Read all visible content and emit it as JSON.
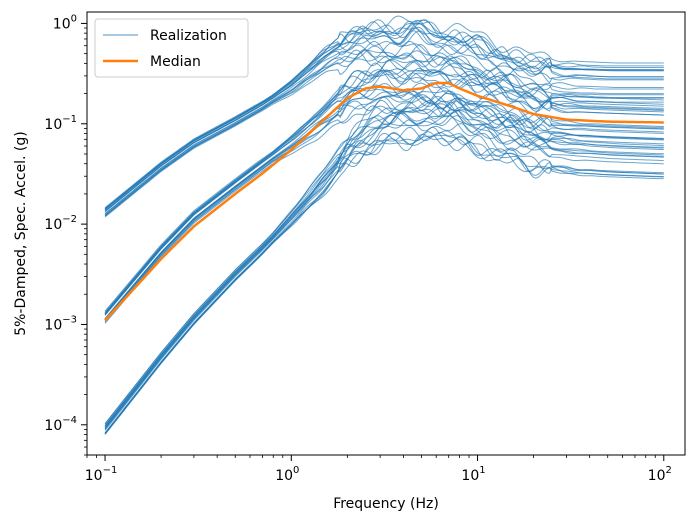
{
  "chart_data": {
    "type": "line",
    "xlabel": "Frequency (Hz)",
    "ylabel": "5%-Damped, Spec. Accel. (g)",
    "xscale": "log",
    "yscale": "log",
    "xlim": [
      0.08,
      130
    ],
    "ylim": [
      5e-05,
      1.3
    ],
    "xticks": [
      {
        "value": 0.1,
        "base": "10",
        "exp": "−1"
      },
      {
        "value": 1,
        "base": "10",
        "exp": "0"
      },
      {
        "value": 10,
        "base": "10",
        "exp": "1"
      },
      {
        "value": 100,
        "base": "10",
        "exp": "2"
      }
    ],
    "yticks": [
      {
        "value": 0.0001,
        "base": "10",
        "exp": "−4"
      },
      {
        "value": 0.001,
        "base": "10",
        "exp": "−3"
      },
      {
        "value": 0.01,
        "base": "10",
        "exp": "−2"
      },
      {
        "value": 0.1,
        "base": "10",
        "exp": "−1"
      },
      {
        "value": 1,
        "base": "10",
        "exp": "0"
      }
    ],
    "grid": false,
    "legend_position": "top-left",
    "legend": [
      {
        "label": "Realization",
        "color": "#1f77b4",
        "style": "thin"
      },
      {
        "label": "Median",
        "color": "#ff7f0e",
        "style": "thick"
      }
    ],
    "colors": {
      "realization": "#1f77b4",
      "median": "#ff7f0e"
    },
    "groups": [
      {
        "count": 18,
        "points": [
          [
            0.1,
            0.013
          ],
          [
            0.2,
            0.037
          ],
          [
            0.3,
            0.063
          ],
          [
            0.5,
            0.105
          ],
          [
            0.7,
            0.15
          ],
          [
            1.0,
            0.23
          ],
          [
            1.5,
            0.42
          ],
          [
            2.0,
            0.58
          ],
          [
            3.0,
            0.62
          ],
          [
            5.0,
            0.64
          ],
          [
            7.0,
            0.55
          ],
          [
            10.0,
            0.45
          ],
          [
            15.0,
            0.33
          ],
          [
            20.0,
            0.28
          ],
          [
            30.0,
            0.26
          ],
          [
            50.0,
            0.25
          ],
          [
            100.0,
            0.25
          ]
        ],
        "spread_low": 0.15,
        "spread_high": 0.22
      },
      {
        "count": 18,
        "points": [
          [
            0.1,
            0.0012
          ],
          [
            0.2,
            0.0055
          ],
          [
            0.3,
            0.012
          ],
          [
            0.5,
            0.025
          ],
          [
            0.7,
            0.04
          ],
          [
            1.0,
            0.065
          ],
          [
            1.5,
            0.12
          ],
          [
            2.0,
            0.2
          ],
          [
            3.0,
            0.26
          ],
          [
            4.0,
            0.25
          ],
          [
            6.0,
            0.25
          ],
          [
            8.0,
            0.22
          ],
          [
            10.0,
            0.2
          ],
          [
            15.0,
            0.16
          ],
          [
            20.0,
            0.13
          ],
          [
            30.0,
            0.12
          ],
          [
            50.0,
            0.115
          ],
          [
            100.0,
            0.11
          ]
        ],
        "spread_low": 0.2,
        "spread_high": 0.25
      },
      {
        "count": 18,
        "points": [
          [
            0.1,
            8.8e-05
          ],
          [
            0.2,
            0.00045
          ],
          [
            0.3,
            0.0011
          ],
          [
            0.5,
            0.003
          ],
          [
            0.7,
            0.0055
          ],
          [
            1.0,
            0.011
          ],
          [
            1.5,
            0.025
          ],
          [
            2.0,
            0.05
          ],
          [
            2.5,
            0.07
          ],
          [
            3.0,
            0.085
          ],
          [
            5.0,
            0.095
          ],
          [
            7.0,
            0.1
          ],
          [
            10.0,
            0.075
          ],
          [
            15.0,
            0.06
          ],
          [
            20.0,
            0.05
          ],
          [
            30.0,
            0.045
          ],
          [
            50.0,
            0.042
          ],
          [
            100.0,
            0.04
          ]
        ],
        "spread_low": 0.2,
        "spread_high": 0.25
      }
    ],
    "median": [
      [
        0.1,
        0.0011
      ],
      [
        0.15,
        0.0025
      ],
      [
        0.2,
        0.0045
      ],
      [
        0.3,
        0.0095
      ],
      [
        0.5,
        0.02
      ],
      [
        0.7,
        0.032
      ],
      [
        1.0,
        0.055
      ],
      [
        1.5,
        0.11
      ],
      [
        2.0,
        0.18
      ],
      [
        2.5,
        0.225
      ],
      [
        3.0,
        0.235
      ],
      [
        3.5,
        0.225
      ],
      [
        4.0,
        0.215
      ],
      [
        5.0,
        0.225
      ],
      [
        6.0,
        0.255
      ],
      [
        7.0,
        0.255
      ],
      [
        8.0,
        0.225
      ],
      [
        10.0,
        0.19
      ],
      [
        15.0,
        0.15
      ],
      [
        20.0,
        0.125
      ],
      [
        30.0,
        0.11
      ],
      [
        50.0,
        0.105
      ],
      [
        100.0,
        0.103
      ]
    ]
  }
}
